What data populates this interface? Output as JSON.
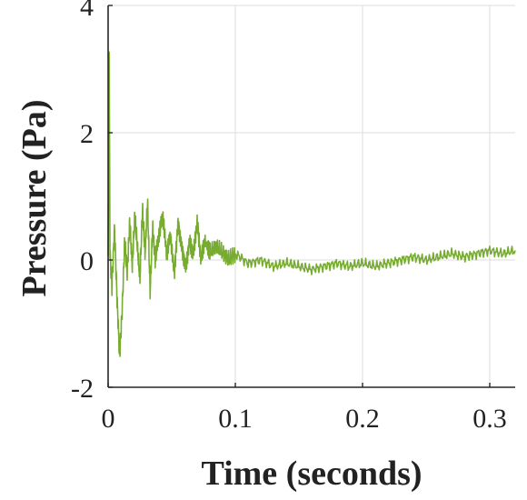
{
  "chart_data": {
    "type": "line",
    "title": "",
    "xlabel": "Time (seconds)",
    "ylabel": "Pressure (Pa)",
    "xlim": [
      0,
      0.32
    ],
    "ylim": [
      -2,
      4
    ],
    "xticks": [
      0,
      0.1,
      0.2,
      0.3
    ],
    "xtick_labels": [
      "0",
      "0.1",
      "0.2",
      "0.3"
    ],
    "yticks": [
      -2,
      0,
      2,
      4
    ],
    "ytick_labels": [
      "-2",
      "0",
      "2",
      "4"
    ],
    "grid": true,
    "legend": "none",
    "series": [
      {
        "color": "#77ac30",
        "x": [
          0,
          0.0008,
          0.0015,
          0.003,
          0.005,
          0.007,
          0.009,
          0.011,
          0.013,
          0.015,
          0.017,
          0.019,
          0.021,
          0.023,
          0.025,
          0.027,
          0.029,
          0.031,
          0.033,
          0.035,
          0.037,
          0.04,
          0.043,
          0.046,
          0.049,
          0.052,
          0.055,
          0.058,
          0.061,
          0.064,
          0.067,
          0.07,
          0.073,
          0.076,
          0.08,
          0.085,
          0.09,
          0.095,
          0.1,
          0.11,
          0.12,
          0.13,
          0.14,
          0.15,
          0.16,
          0.17,
          0.18,
          0.19,
          0.2,
          0.21,
          0.22,
          0.23,
          0.24,
          0.25,
          0.26,
          0.27,
          0.28,
          0.29,
          0.3,
          0.31,
          0.32
        ],
        "y": [
          0,
          3.2,
          0.1,
          -0.4,
          0.5,
          -0.6,
          -1.5,
          -0.8,
          0.3,
          -0.2,
          0.6,
          -0.1,
          0.7,
          0.2,
          -0.3,
          0.8,
          0.1,
          0.9,
          -0.5,
          0.5,
          0.0,
          0.4,
          0.7,
          0.1,
          0.4,
          -0.2,
          0.6,
          0.2,
          -0.1,
          0.3,
          0.1,
          0.6,
          0.0,
          0.3,
          0.1,
          0.2,
          0.1,
          0.0,
          0.1,
          -0.05,
          0.0,
          -0.1,
          -0.05,
          -0.1,
          -0.15,
          -0.1,
          -0.05,
          -0.1,
          -0.05,
          -0.1,
          -0.05,
          0.0,
          0.05,
          0.0,
          0.05,
          0.1,
          0.05,
          0.1,
          0.15,
          0.1,
          0.15
        ]
      }
    ]
  }
}
